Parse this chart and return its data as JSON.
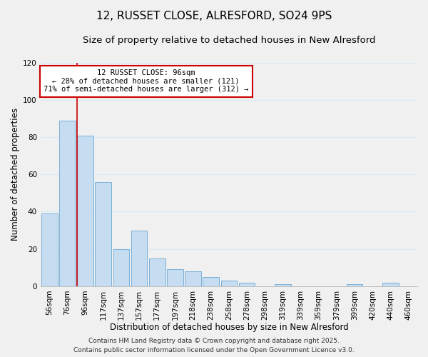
{
  "title": "12, RUSSET CLOSE, ALRESFORD, SO24 9PS",
  "subtitle": "Size of property relative to detached houses in New Alresford",
  "xlabel": "Distribution of detached houses by size in New Alresford",
  "ylabel": "Number of detached properties",
  "categories": [
    "56sqm",
    "76sqm",
    "96sqm",
    "117sqm",
    "137sqm",
    "157sqm",
    "177sqm",
    "197sqm",
    "218sqm",
    "238sqm",
    "258sqm",
    "278sqm",
    "298sqm",
    "319sqm",
    "339sqm",
    "359sqm",
    "379sqm",
    "399sqm",
    "420sqm",
    "440sqm",
    "460sqm"
  ],
  "values": [
    39,
    89,
    81,
    56,
    20,
    30,
    15,
    9,
    8,
    5,
    3,
    2,
    0,
    1,
    0,
    0,
    0,
    1,
    0,
    2,
    0
  ],
  "bar_color": "#c6dcf0",
  "bar_edge_color": "#7ab0d8",
  "highlight_index": 2,
  "highlight_line_color": "#cc0000",
  "annotation_title": "12 RUSSET CLOSE: 96sqm",
  "annotation_line1": "← 28% of detached houses are smaller (121)",
  "annotation_line2": "71% of semi-detached houses are larger (312) →",
  "annotation_box_color": "#ffffff",
  "annotation_box_edge": "#cc0000",
  "ylim": [
    0,
    120
  ],
  "yticks": [
    0,
    20,
    40,
    60,
    80,
    100,
    120
  ],
  "footer1": "Contains HM Land Registry data © Crown copyright and database right 2025.",
  "footer2": "Contains public sector information licensed under the Open Government Licence v3.0.",
  "background_color": "#f0f0f0",
  "grid_color": "#dce9f5",
  "title_fontsize": 11,
  "subtitle_fontsize": 9.5,
  "axis_label_fontsize": 8.5,
  "tick_fontsize": 7.5,
  "footer_fontsize": 6.5,
  "ann_fontsize": 7.5
}
